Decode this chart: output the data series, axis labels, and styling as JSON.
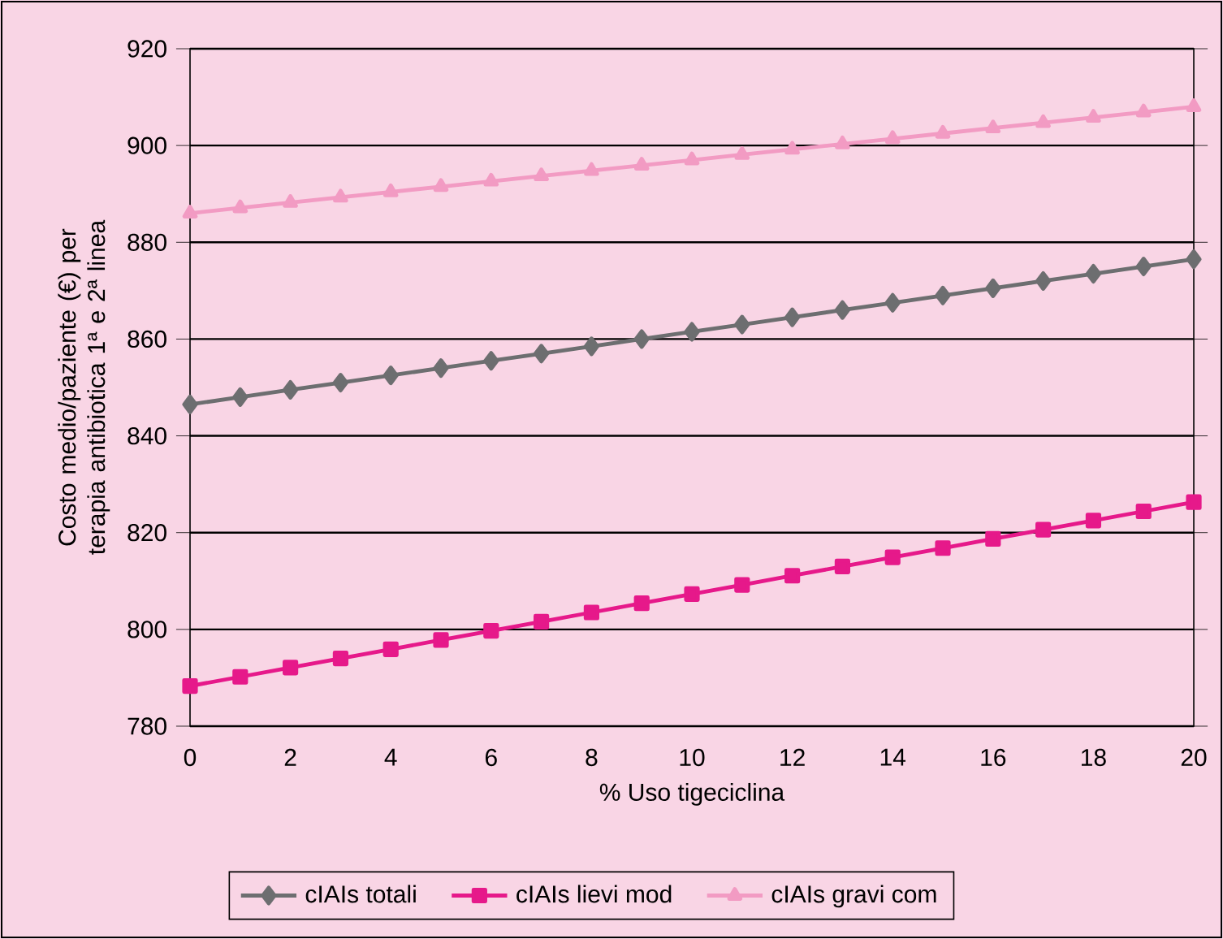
{
  "chart_data": {
    "type": "line",
    "xlabel": "% Uso tigeciclina",
    "ylabel": "Costo medio/paziente (€) per terapia antibiotica 1ª e 2ª linea",
    "x": [
      0,
      1,
      2,
      3,
      4,
      5,
      6,
      7,
      8,
      9,
      10,
      11,
      12,
      13,
      14,
      15,
      16,
      17,
      18,
      19,
      20
    ],
    "series": [
      {
        "name": "cIAIs totali",
        "color": "#6d6e70",
        "marker": "diamond",
        "values": [
          846.5,
          848,
          849.5,
          851,
          852.5,
          854,
          855.5,
          857,
          858.5,
          860,
          861.5,
          863,
          864.5,
          866,
          867.5,
          869,
          870.5,
          872,
          873.5,
          875,
          876.5
        ]
      },
      {
        "name": "cIAIs lievi mod",
        "color": "#e6198a",
        "marker": "square",
        "values": [
          788.3,
          790.2,
          792.1,
          794,
          795.9,
          797.8,
          799.7,
          801.6,
          803.5,
          805.4,
          807.3,
          809.2,
          811.1,
          813,
          814.9,
          816.8,
          818.7,
          820.6,
          822.5,
          824.4,
          826.3
        ]
      },
      {
        "name": "cIAIs gravi com",
        "color": "#f29bc3",
        "marker": "triangle",
        "values": [
          886,
          887.1,
          888.2,
          889.3,
          890.4,
          891.5,
          892.6,
          893.7,
          894.8,
          895.9,
          897,
          898.1,
          899.2,
          900.3,
          901.4,
          902.5,
          903.6,
          904.7,
          905.8,
          906.9,
          908
        ]
      }
    ],
    "xlim": [
      0,
      20
    ],
    "xticks": [
      0,
      2,
      4,
      6,
      8,
      10,
      12,
      14,
      16,
      18,
      20
    ],
    "ylim": [
      780,
      920
    ],
    "yticks": [
      780,
      800,
      820,
      840,
      860,
      880,
      900,
      920
    ],
    "grid": "y",
    "legend": "bottom",
    "line_style": "solid"
  }
}
